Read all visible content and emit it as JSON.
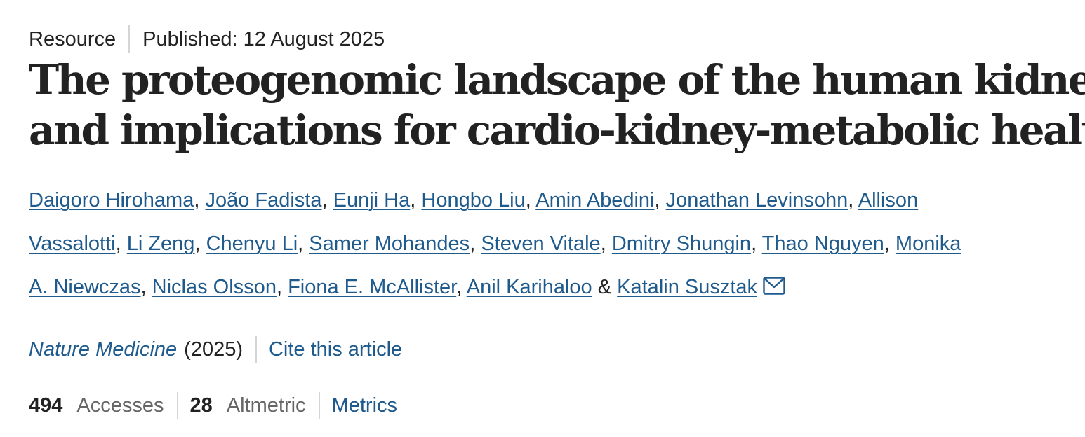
{
  "article": {
    "type": "Resource",
    "published_label": "Published: 12 August 2025",
    "title_lines": [
      "The proteogenomic landscape of the human kidney",
      "and implications for cardio-kidney-metabolic health"
    ]
  },
  "authors": {
    "lines": [
      [
        "Daigoro Hirohama",
        "João Fadista",
        "Eunji Ha",
        "Hongbo Liu",
        "Amin Abedini",
        "Jonathan Levinsohn",
        "Allison"
      ],
      [
        "Vassalotti",
        "Li Zeng",
        "Chenyu Li",
        "Samer Mohandes",
        "Steven Vitale",
        "Dmitry Shungin",
        "Thao Nguyen",
        "Monika"
      ],
      [
        "A. Niewczas",
        "Niclas Olsson",
        "Fiona E. McAllister",
        "Anil Karihaloo"
      ]
    ],
    "conjunction": "&",
    "last_author": "Katalin Susztak",
    "contact_icon": "mail-icon"
  },
  "journal": {
    "name": "Nature Medicine",
    "year": "(2025)",
    "cite_label": "Cite this article"
  },
  "stats": {
    "accesses_count": "494",
    "accesses_label": "Accesses",
    "altmetric_count": "28",
    "altmetric_label": "Altmetric",
    "metrics_label": "Metrics"
  },
  "colors": {
    "link": "#1f5a8d",
    "text": "#222222",
    "muted": "#666666",
    "divider": "#d5d5d5"
  }
}
